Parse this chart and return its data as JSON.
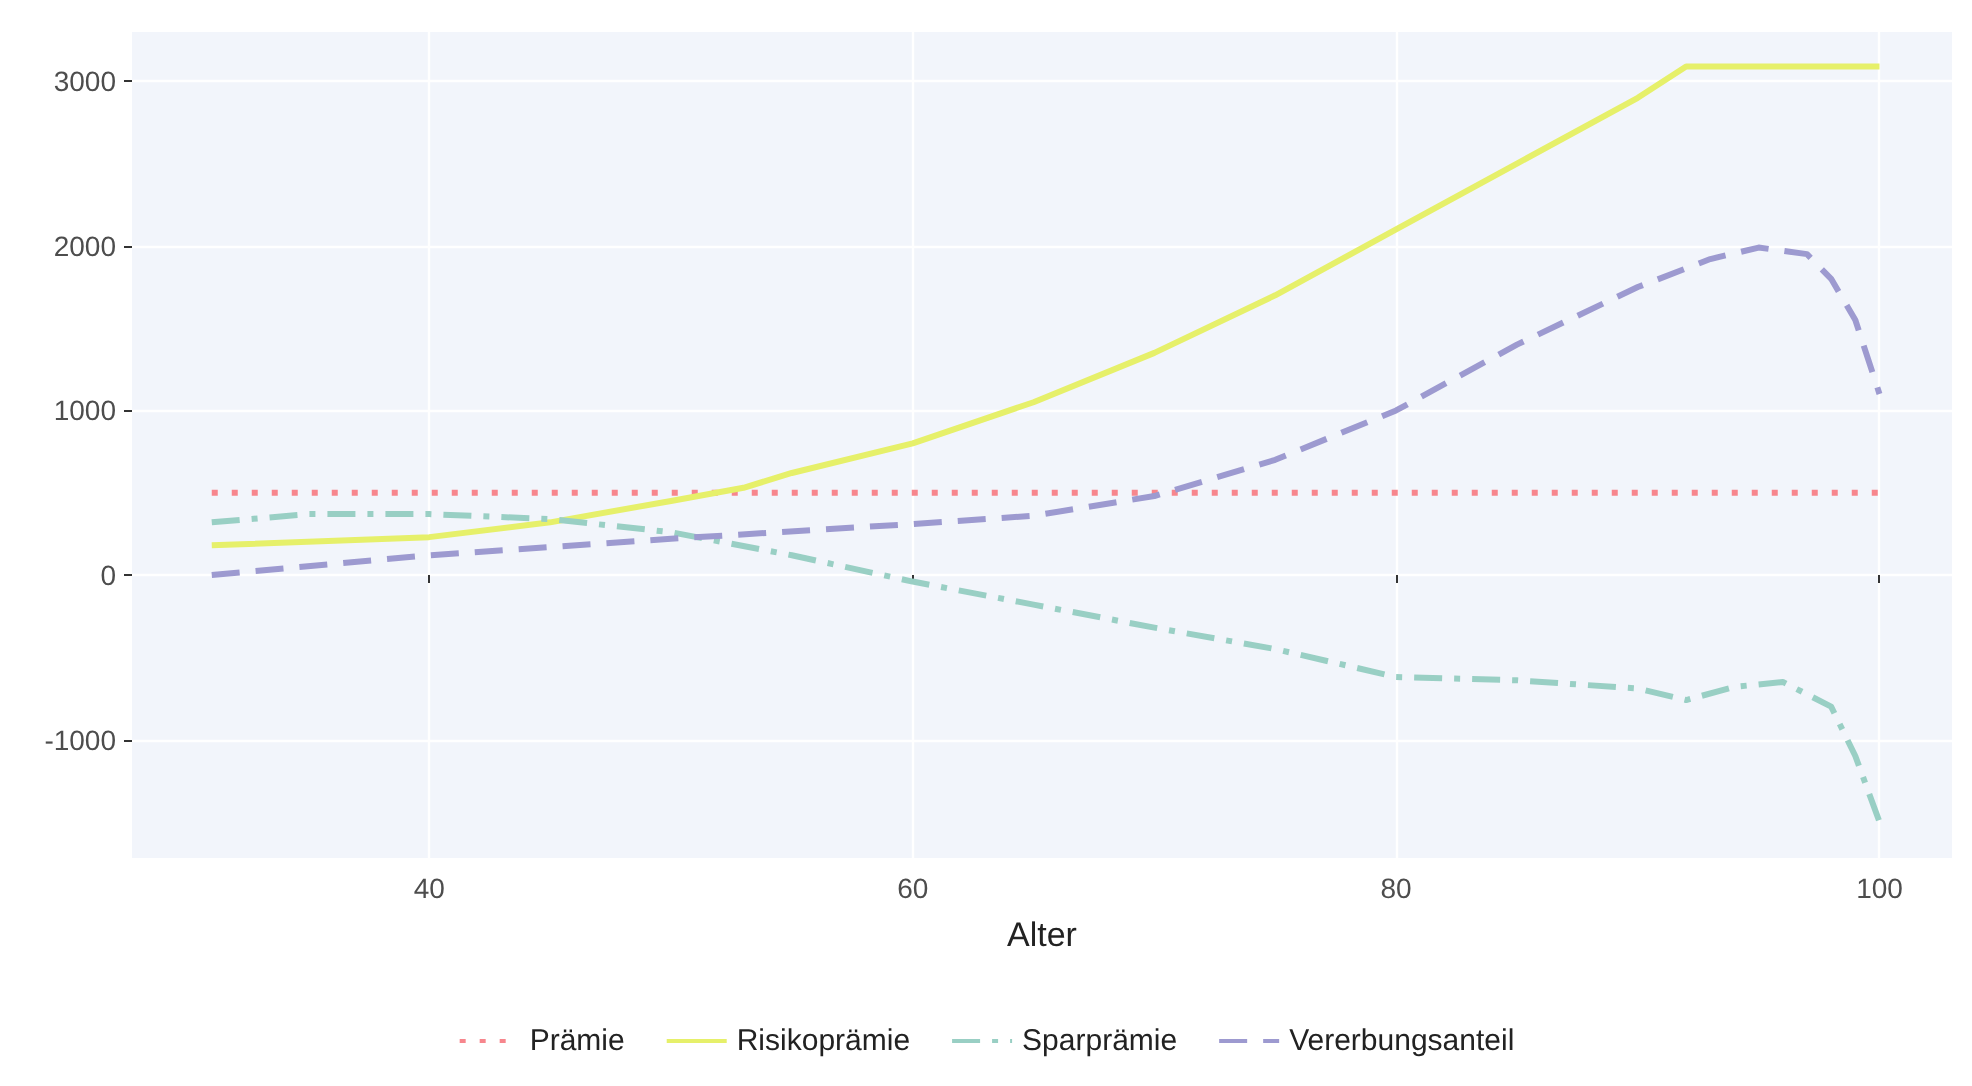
{
  "chart_data": {
    "type": "line",
    "xlabel": "Alter",
    "xlim": [
      27.7,
      103
    ],
    "xticks": [
      40,
      60,
      80,
      100
    ],
    "ylim": [
      -1720,
      3300
    ],
    "yticks": [
      -1000,
      0,
      1000,
      2000,
      3000
    ],
    "grid": true,
    "legend": "bottom",
    "marker": "none",
    "series": [
      {
        "name": "Prämie",
        "color": "#f7868d",
        "line_style": "dotted",
        "x": [
          31,
          100
        ],
        "values": [
          500,
          500
        ]
      },
      {
        "name": "Risikoprämie",
        "color": "#e6f06a",
        "line_style": "solid",
        "x": [
          31,
          40,
          45,
          50,
          53,
          55,
          60,
          65,
          70,
          75,
          80,
          85,
          90,
          92,
          100
        ],
        "values": [
          180,
          230,
          320,
          450,
          530,
          620,
          800,
          1050,
          1350,
          1700,
          2100,
          2500,
          2900,
          3090,
          3090
        ]
      },
      {
        "name": "Sparprämie",
        "color": "#99cfc4",
        "line_style": "dashdot",
        "x": [
          31,
          35,
          40,
          45,
          50,
          55,
          60,
          65,
          70,
          75,
          80,
          85,
          90,
          92,
          94,
          96,
          98,
          99,
          100
        ],
        "values": [
          320,
          370,
          370,
          340,
          260,
          120,
          -40,
          -180,
          -320,
          -450,
          -620,
          -640,
          -690,
          -760,
          -680,
          -650,
          -800,
          -1100,
          -1500
        ]
      },
      {
        "name": "Vererbungsanteil",
        "color": "#9d9ad0",
        "line_style": "dashed",
        "x": [
          31,
          40,
          50,
          60,
          65,
          70,
          75,
          80,
          85,
          90,
          93,
          95,
          97,
          98,
          99,
          100
        ],
        "values": [
          0,
          120,
          220,
          310,
          360,
          480,
          700,
          1000,
          1400,
          1750,
          1920,
          1990,
          1950,
          1800,
          1550,
          1100
        ]
      }
    ]
  }
}
